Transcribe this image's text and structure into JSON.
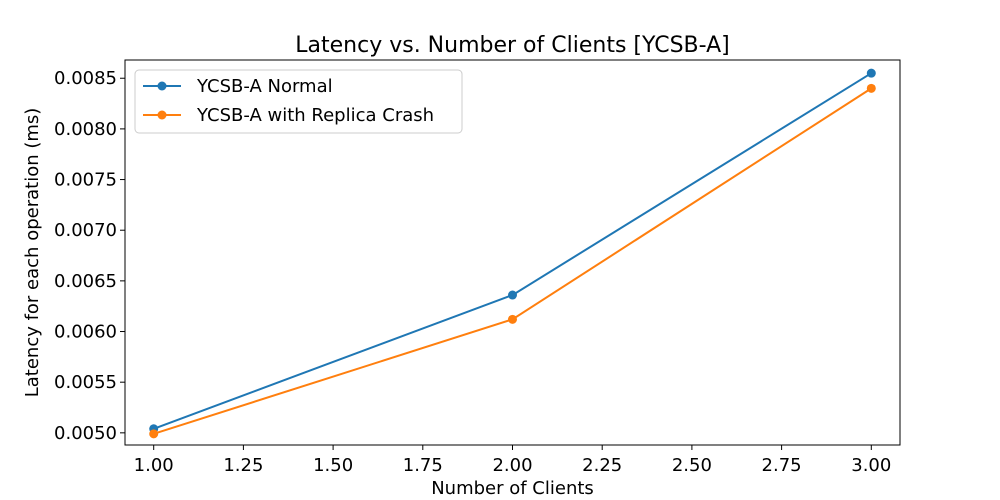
{
  "chart_data": {
    "type": "line",
    "title": "Latency vs. Number of Clients [YCSB-A]",
    "xlabel": "Number of Clients",
    "ylabel": "Latency for each operation (ms)",
    "x": [
      1.0,
      2.0,
      3.0
    ],
    "xlim": [
      0.92,
      3.08
    ],
    "ylim": [
      0.00488,
      0.00868
    ],
    "xticks": [
      1.0,
      1.25,
      1.5,
      1.75,
      2.0,
      2.25,
      2.5,
      2.75,
      3.0
    ],
    "xtick_labels": [
      "1.00",
      "1.25",
      "1.50",
      "1.75",
      "2.00",
      "2.25",
      "2.50",
      "2.75",
      "3.00"
    ],
    "yticks": [
      0.005,
      0.0055,
      0.006,
      0.0065,
      0.007,
      0.0075,
      0.008,
      0.0085
    ],
    "ytick_labels": [
      "0.0050",
      "0.0055",
      "0.0060",
      "0.0065",
      "0.0070",
      "0.0075",
      "0.0080",
      "0.0085"
    ],
    "grid": false,
    "legend_position": "top-left",
    "series": [
      {
        "name": "YCSB-A Normal",
        "color": "#1f77b4",
        "values": [
          0.00504,
          0.00636,
          0.00855
        ]
      },
      {
        "name": "YCSB-A with Replica Crash",
        "color": "#ff7f0e",
        "values": [
          0.00499,
          0.00612,
          0.0084
        ]
      }
    ]
  }
}
